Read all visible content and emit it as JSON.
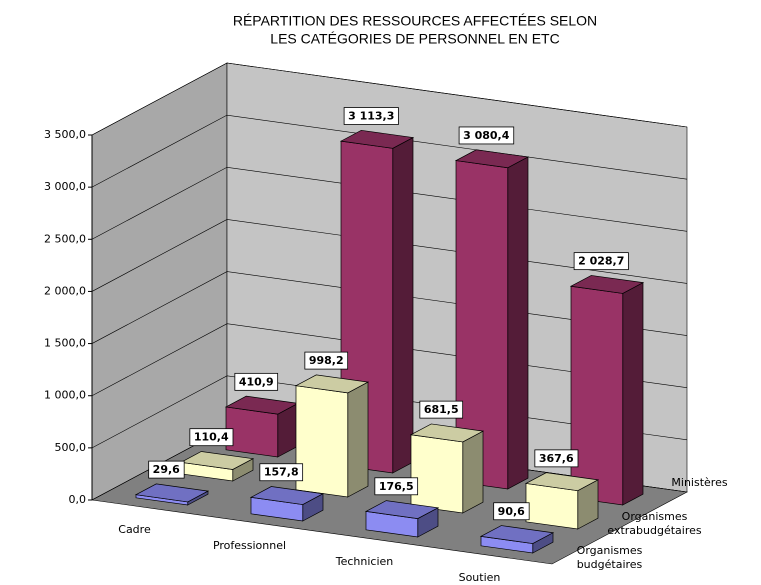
{
  "chart_data": {
    "type": "bar3d",
    "title": [
      "RÉPARTITION DES RESSOURCES AFFECTÉES SELON",
      "LES CATÉGORIES DE PERSONNEL EN ETC"
    ],
    "categories": [
      "Cadre",
      "Professionnel",
      "Technicien",
      "Soutien"
    ],
    "series": [
      {
        "name": "Organismes budgétaires",
        "color": "#8c8cf2",
        "values": [
          29.6,
          157.8,
          176.5,
          90.6
        ],
        "value_labels": [
          "29,6",
          "157,8",
          "176,5",
          "90,6"
        ]
      },
      {
        "name": "Organismes extrabudgétaires",
        "color": "#ffffcc",
        "values": [
          110.4,
          998.2,
          681.5,
          367.6
        ],
        "value_labels": [
          "110,4",
          "998,2",
          "681,5",
          "367,6"
        ]
      },
      {
        "name": "Ministères",
        "color": "#993366",
        "values": [
          410.9,
          3113.3,
          3080.4,
          2028.7
        ],
        "value_labels": [
          "410,9",
          "3 113,3",
          "3 080,4",
          "2 028,7"
        ]
      }
    ],
    "ylim": [
      0,
      3500
    ],
    "yticks": [
      {
        "value": 0,
        "label": "0,0"
      },
      {
        "value": 500,
        "label": "500,0"
      },
      {
        "value": 1000,
        "label": "1 000,0"
      },
      {
        "value": 1500,
        "label": "1 500,0"
      },
      {
        "value": 2000,
        "label": "2 000,0"
      },
      {
        "value": 2500,
        "label": "2 500,0"
      },
      {
        "value": 3000,
        "label": "3 000,0"
      },
      {
        "value": 3500,
        "label": "3 500,0"
      }
    ],
    "grid": true
  }
}
